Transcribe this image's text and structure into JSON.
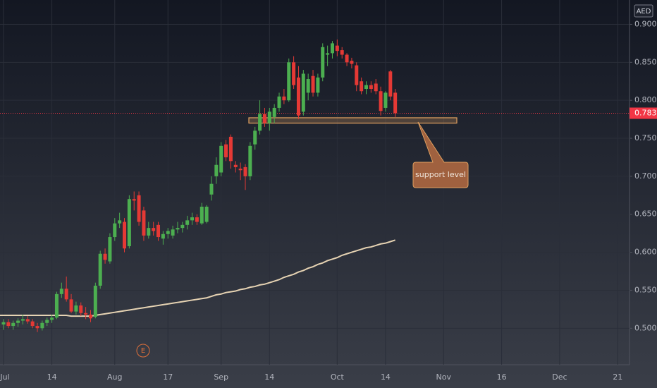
{
  "chart_data": {
    "type": "candlestick",
    "currency": "AED",
    "categories": [
      "Jul",
      null,
      null,
      null,
      null,
      null,
      null,
      null,
      null,
      null,
      "14",
      null,
      null,
      null,
      null,
      null,
      null,
      null,
      null,
      null,
      null,
      null,
      null,
      "Aug",
      null,
      null,
      null,
      null,
      null,
      null,
      null,
      null,
      null,
      null,
      "17",
      null,
      null,
      null,
      null,
      null,
      null,
      null,
      null,
      null,
      null,
      "Sep",
      null,
      null,
      null,
      null,
      null,
      null,
      null,
      null,
      null,
      "14",
      null,
      null,
      null,
      null,
      null,
      null,
      null,
      null,
      null,
      null,
      null,
      null,
      null,
      "Oct",
      null,
      null,
      null,
      null,
      null,
      null,
      null,
      null,
      null,
      "14",
      null,
      null,
      null,
      null,
      null,
      null,
      null,
      null,
      null,
      null,
      null,
      "Nov",
      null,
      null,
      null,
      null,
      null,
      null,
      null,
      null,
      null,
      null,
      null,
      "16",
      null,
      null,
      null,
      null,
      null,
      null,
      null,
      null,
      null,
      null,
      null,
      "Dec",
      null,
      null,
      null,
      null,
      null,
      null,
      null,
      null,
      null,
      null,
      null,
      "21",
      null,
      null
    ],
    "open": [
      0.505,
      0.508,
      0.503,
      0.507,
      0.51,
      0.512,
      0.509,
      0.503,
      0.5,
      0.507,
      0.511,
      0.514,
      0.545,
      0.552,
      0.538,
      0.522,
      0.53,
      0.52,
      0.518,
      0.515,
      0.556,
      0.598,
      0.588,
      0.62,
      0.638,
      0.64,
      0.608,
      0.67,
      0.675,
      0.655,
      0.622,
      0.632,
      0.636,
      0.618,
      0.624,
      0.622,
      0.63,
      0.632,
      0.636,
      0.642,
      0.646,
      0.638,
      0.64,
      0.676,
      0.7,
      0.705,
      0.742,
      0.752,
      0.715,
      0.71,
      0.712,
      0.7,
      0.742,
      0.76,
      0.782,
      0.77,
      0.778,
      0.79,
      0.805,
      0.8,
      0.85,
      0.83,
      0.785,
      0.81,
      0.832,
      0.81,
      0.83,
      0.86,
      0.862,
      0.872,
      0.866,
      0.86,
      0.852,
      0.846,
      0.825,
      0.815,
      0.82,
      0.822,
      0.812,
      0.79,
      0.838,
      0.81,
      null,
      null,
      null,
      null,
      null,
      null,
      null,
      null,
      null,
      null,
      null,
      null,
      null,
      null,
      null,
      null,
      null,
      null,
      null,
      null,
      null,
      null,
      null,
      null,
      null,
      null,
      null,
      null,
      null,
      null,
      null,
      null,
      null,
      null,
      null,
      null,
      null,
      null,
      null,
      null,
      null,
      null,
      null,
      null,
      null,
      null,
      null,
      null
    ],
    "high": [
      0.512,
      0.512,
      0.51,
      0.513,
      0.518,
      0.516,
      0.512,
      0.507,
      0.51,
      0.514,
      0.518,
      0.548,
      0.56,
      0.568,
      0.545,
      0.535,
      0.534,
      0.528,
      0.524,
      0.56,
      0.602,
      0.605,
      0.625,
      0.645,
      0.652,
      0.645,
      0.675,
      0.68,
      0.68,
      0.66,
      0.64,
      0.64,
      0.64,
      0.628,
      0.632,
      0.635,
      0.64,
      0.64,
      0.648,
      0.652,
      0.65,
      0.665,
      0.662,
      0.7,
      0.725,
      0.745,
      0.748,
      0.755,
      0.72,
      0.718,
      0.716,
      0.745,
      0.765,
      0.8,
      0.79,
      0.79,
      0.795,
      0.81,
      0.815,
      0.855,
      0.858,
      0.845,
      0.84,
      0.835,
      0.84,
      0.835,
      0.875,
      0.872,
      0.878,
      0.88,
      0.87,
      0.862,
      0.856,
      0.85,
      0.83,
      0.825,
      0.825,
      0.828,
      0.818,
      0.812,
      0.84,
      0.815,
      null,
      null,
      null,
      null,
      null,
      null,
      null,
      null,
      null,
      null,
      null,
      null,
      null,
      null,
      null,
      null,
      null,
      null,
      null,
      null,
      null,
      null,
      null,
      null,
      null,
      null,
      null,
      null,
      null,
      null,
      null,
      null,
      null,
      null,
      null,
      null,
      null,
      null,
      null,
      null,
      null,
      null,
      null,
      null,
      null,
      null,
      null,
      null
    ],
    "low": [
      0.498,
      0.5,
      0.498,
      0.502,
      0.505,
      0.506,
      0.5,
      0.495,
      0.497,
      0.503,
      0.507,
      0.512,
      0.54,
      0.535,
      0.52,
      0.518,
      0.516,
      0.512,
      0.508,
      0.513,
      0.552,
      0.585,
      0.585,
      0.615,
      0.632,
      0.6,
      0.605,
      0.655,
      0.635,
      0.615,
      0.618,
      0.622,
      0.615,
      0.61,
      0.618,
      0.618,
      0.625,
      0.626,
      0.63,
      0.636,
      0.636,
      0.636,
      0.638,
      0.668,
      0.69,
      0.7,
      0.72,
      0.71,
      0.705,
      0.695,
      0.682,
      0.695,
      0.735,
      0.755,
      0.765,
      0.76,
      0.77,
      0.785,
      0.795,
      0.798,
      0.815,
      0.775,
      0.78,
      0.8,
      0.805,
      0.805,
      0.825,
      0.845,
      0.855,
      0.858,
      0.855,
      0.845,
      0.842,
      0.812,
      0.808,
      0.808,
      0.81,
      0.808,
      0.78,
      0.785,
      0.8,
      0.778,
      null,
      null,
      null,
      null,
      null,
      null,
      null,
      null,
      null,
      null,
      null,
      null,
      null,
      null,
      null,
      null,
      null,
      null,
      null,
      null,
      null,
      null,
      null,
      null,
      null,
      null,
      null,
      null,
      null,
      null,
      null,
      null,
      null,
      null,
      null,
      null,
      null,
      null,
      null,
      null,
      null,
      null,
      null,
      null,
      null,
      null,
      null,
      null
    ],
    "close": [
      0.508,
      0.503,
      0.507,
      0.51,
      0.512,
      0.509,
      0.503,
      0.5,
      0.507,
      0.511,
      0.514,
      0.545,
      0.552,
      0.538,
      0.522,
      0.53,
      0.52,
      0.518,
      0.513,
      0.556,
      0.598,
      0.59,
      0.62,
      0.638,
      0.642,
      0.605,
      0.67,
      0.668,
      0.64,
      0.622,
      0.632,
      0.628,
      0.62,
      0.624,
      0.628,
      0.63,
      0.632,
      0.636,
      0.642,
      0.646,
      0.64,
      0.66,
      0.66,
      0.69,
      0.715,
      0.74,
      0.725,
      0.72,
      0.712,
      0.708,
      0.7,
      0.74,
      0.76,
      0.782,
      0.77,
      0.785,
      0.79,
      0.805,
      0.8,
      0.85,
      0.82,
      0.78,
      0.835,
      0.828,
      0.81,
      0.83,
      0.87,
      0.862,
      0.875,
      0.865,
      0.86,
      0.85,
      0.848,
      0.82,
      0.812,
      0.82,
      0.815,
      0.812,
      0.786,
      0.81,
      0.805,
      0.783,
      null,
      null,
      null,
      null,
      null,
      null,
      null,
      null,
      null,
      null,
      null,
      null,
      null,
      null,
      null,
      null,
      null,
      null,
      null,
      null,
      null,
      null,
      null,
      null,
      null,
      null,
      null,
      null,
      null,
      null,
      null,
      null,
      null,
      null,
      null,
      null,
      null,
      null,
      null,
      null,
      null,
      null,
      null,
      null,
      null,
      null,
      null,
      null
    ],
    "up_color": "#4caf50",
    "down_color": "#e53935",
    "moving_average": {
      "color": "#e6d3b3",
      "values": [
        0.517,
        0.517,
        0.517,
        0.517,
        0.517,
        0.517,
        0.517,
        0.517,
        0.517,
        0.517,
        0.517,
        0.517,
        0.517,
        0.517,
        0.516,
        0.516,
        0.516,
        0.516,
        0.516,
        0.517,
        0.518,
        0.519,
        0.52,
        0.521,
        0.522,
        0.523,
        0.524,
        0.525,
        0.526,
        0.527,
        0.528,
        0.529,
        0.53,
        0.531,
        0.532,
        0.533,
        0.534,
        0.535,
        0.536,
        0.537,
        0.538,
        0.539,
        0.54,
        0.542,
        0.544,
        0.545,
        0.547,
        0.548,
        0.549,
        0.551,
        0.552,
        0.554,
        0.555,
        0.557,
        0.558,
        0.56,
        0.562,
        0.564,
        0.567,
        0.569,
        0.571,
        0.574,
        0.576,
        0.579,
        0.581,
        0.584,
        0.586,
        0.589,
        0.591,
        0.593,
        0.596,
        0.598,
        0.6,
        0.602,
        0.604,
        0.606,
        0.607,
        0.609,
        0.611,
        0.612,
        0.614,
        0.616,
        null,
        null,
        null,
        null,
        null,
        null,
        null,
        null,
        null,
        null,
        null,
        null,
        null,
        null,
        null,
        null,
        null,
        null,
        null,
        null,
        null,
        null,
        null,
        null,
        null,
        null,
        null,
        null,
        null,
        null,
        null,
        null,
        null,
        null,
        null,
        null,
        null,
        null,
        null,
        null,
        null,
        null,
        null,
        null,
        null,
        null,
        null,
        null
      ]
    },
    "last_price": {
      "value": 0.783,
      "label": "0.783",
      "color": "#f23645"
    },
    "support_zone": {
      "low": 0.77,
      "high": 0.777,
      "color": "#e0a060"
    },
    "annotation": "support level",
    "event_marker": "E",
    "ylim": [
      0.452,
      0.932
    ],
    "yticks": [
      {
        "value": 0.5,
        "label": "0.500"
      },
      {
        "value": 0.55,
        "label": "0.550"
      },
      {
        "value": 0.6,
        "label": "0.600"
      },
      {
        "value": 0.65,
        "label": "0.650"
      },
      {
        "value": 0.7,
        "label": "0.700"
      },
      {
        "value": 0.75,
        "label": "0.750"
      },
      {
        "value": 0.8,
        "label": "0.800"
      },
      {
        "value": 0.85,
        "label": "0.850"
      },
      {
        "value": 0.9,
        "label": "0.900"
      }
    ],
    "grid": true
  }
}
